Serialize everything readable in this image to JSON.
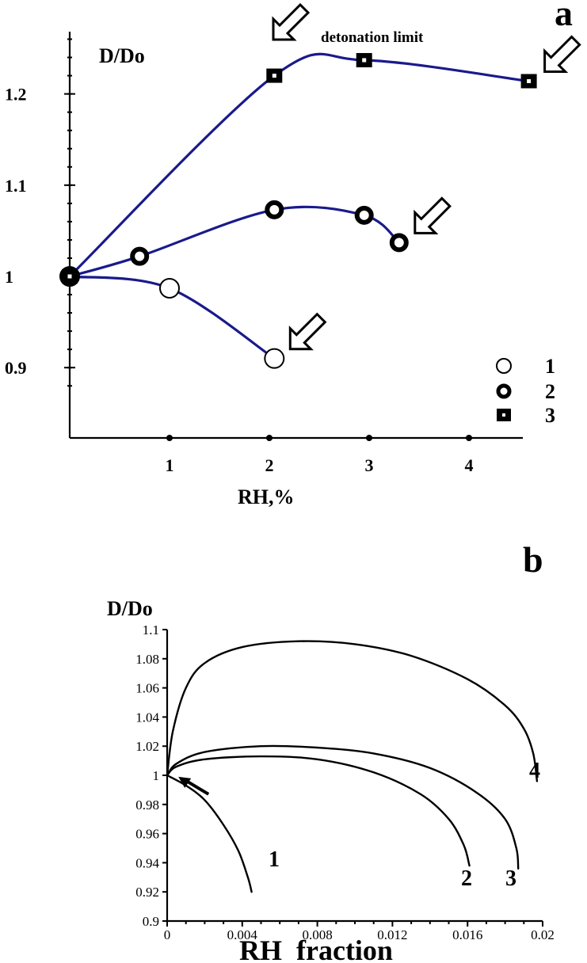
{
  "chart_data": [
    {
      "panel": "a",
      "type": "line",
      "ylabel": "D/Do",
      "xlabel": "RH,%",
      "xlim": [
        0,
        4.8
      ],
      "ylim": [
        0.86,
        1.3
      ],
      "x_ticks": [
        1,
        2,
        3,
        4
      ],
      "y_ticks": [
        0.9,
        1,
        1.1,
        1.2
      ],
      "y_tick_labels": [
        "0.9",
        "1",
        "1.1",
        "1.2"
      ],
      "annotation": "detonation limit",
      "legend_position": "bottom-right",
      "series": [
        {
          "name": "1",
          "marker": "open-circle",
          "x": [
            0,
            1.0,
            2.05
          ],
          "y": [
            1.0,
            0.987,
            0.91
          ],
          "limit_x": 2.05
        },
        {
          "name": "2",
          "marker": "ring-circle",
          "x": [
            0,
            0.7,
            2.05,
            2.95,
            3.3
          ],
          "y": [
            1.0,
            1.022,
            1.073,
            1.067,
            1.037
          ],
          "limit_x": 3.3
        },
        {
          "name": "3",
          "marker": "filled-square",
          "x": [
            0,
            2.05,
            2.95,
            4.6
          ],
          "y": [
            1.0,
            1.22,
            1.237,
            1.214
          ],
          "limit_x": 4.6
        }
      ]
    },
    {
      "panel": "b",
      "type": "line",
      "ylabel": "D/Do",
      "xlabel": "RH  fraction",
      "xlim": [
        0,
        0.02
      ],
      "ylim": [
        0.9,
        1.1
      ],
      "x_ticks": [
        0,
        0.004,
        0.008,
        0.012,
        0.016,
        0.02
      ],
      "x_tick_labels": [
        "0",
        "0.004",
        "0.008",
        "0.012",
        "0.016",
        "0.02"
      ],
      "y_ticks": [
        0.9,
        0.92,
        0.94,
        0.96,
        0.98,
        1,
        1.02,
        1.04,
        1.06,
        1.08,
        1.1
      ],
      "y_tick_labels": [
        "0.9",
        "0.92",
        "0.94",
        "0.96",
        "0.98",
        "1",
        "1.02",
        "1.04",
        "1.06",
        "1.08",
        "1.1"
      ],
      "series": [
        {
          "name": "1",
          "x": [
            0,
            0.001,
            0.002,
            0.003,
            0.0038,
            0.0043,
            0.0045
          ],
          "y": [
            1.0,
            0.993,
            0.983,
            0.966,
            0.948,
            0.93,
            0.92
          ]
        },
        {
          "name": "2",
          "x": [
            0,
            0.0005,
            0.002,
            0.005,
            0.008,
            0.011,
            0.0135,
            0.015,
            0.0158,
            0.0161
          ],
          "y": [
            1.0,
            1.006,
            1.011,
            1.013,
            1.011,
            1.002,
            0.987,
            0.97,
            0.952,
            0.938
          ]
        },
        {
          "name": "3",
          "x": [
            0,
            0.0005,
            0.002,
            0.005,
            0.008,
            0.011,
            0.014,
            0.0165,
            0.018,
            0.0186,
            0.0187
          ],
          "y": [
            1.0,
            1.008,
            1.016,
            1.02,
            1.019,
            1.015,
            1.005,
            0.988,
            0.97,
            0.95,
            0.936
          ]
        },
        {
          "name": "4",
          "x": [
            0,
            0.0003,
            0.001,
            0.002,
            0.004,
            0.007,
            0.01,
            0.013,
            0.016,
            0.018,
            0.019,
            0.0195,
            0.0197
          ],
          "y": [
            1.0,
            1.03,
            1.06,
            1.077,
            1.088,
            1.092,
            1.09,
            1.082,
            1.066,
            1.048,
            1.032,
            1.015,
            0.996
          ]
        }
      ]
    }
  ]
}
